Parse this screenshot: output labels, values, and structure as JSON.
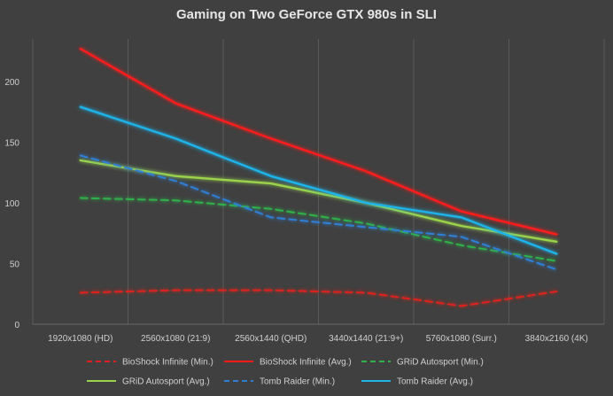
{
  "chart_data": {
    "type": "line",
    "title": "Gaming on Two GeForce GTX 980s in SLI",
    "xlabel": "",
    "ylabel": "",
    "categories": [
      "1920x1080 (HD)",
      "2560x1080 (21:9)",
      "2560x1440 (QHD)",
      "3440x1440 (21:9+)",
      "5760x1080 (Surr.)",
      "3840x2160 (4K)"
    ],
    "ylim": [
      0,
      235
    ],
    "yticks": [
      0,
      50,
      100,
      150,
      200
    ],
    "grid": "vertical",
    "legend": "bottom",
    "series": [
      {
        "name": "BioShock Infinite (Min.)",
        "color": "#e0201c",
        "dash": true,
        "values": [
          26,
          28,
          28,
          26,
          15,
          27
        ]
      },
      {
        "name": "BioShock Infinite (Avg.)",
        "color": "#ff1a1a",
        "dash": false,
        "values": [
          227,
          182,
          153,
          126,
          93,
          74
        ]
      },
      {
        "name": "GRiD Autosport (Min.)",
        "color": "#2fb24a",
        "dash": true,
        "values": [
          104,
          102,
          95,
          83,
          65,
          52
        ]
      },
      {
        "name": "GRiD Autosport (Avg.)",
        "color": "#9bd34c",
        "dash": false,
        "values": [
          135,
          122,
          116,
          100,
          81,
          68
        ]
      },
      {
        "name": "Tomb Raider (Min.)",
        "color": "#2f7fd6",
        "dash": true,
        "values": [
          139,
          118,
          88,
          80,
          72,
          45
        ]
      },
      {
        "name": "Tomb Raider (Avg.)",
        "color": "#1fb4ea",
        "dash": false,
        "values": [
          179,
          153,
          122,
          100,
          88,
          58
        ]
      }
    ]
  }
}
